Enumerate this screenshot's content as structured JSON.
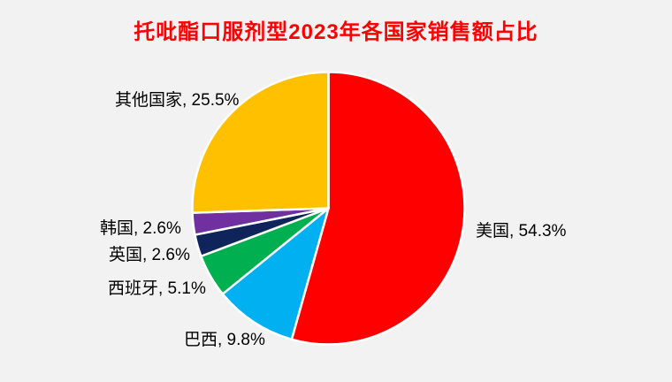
{
  "page": {
    "background_color": "#F2F2F2"
  },
  "chart_data": {
    "type": "pie",
    "title": "托吡酯口服剂型2023年各国家销售额占比",
    "title_color": "#FF0000",
    "unit": "%",
    "direction": "clockwise",
    "start_angle_deg": 0,
    "legend_position": "none",
    "labels_outside": true,
    "label_color": "#000000",
    "stroke_color": "#FFFFFF",
    "slices": [
      {
        "id": "usa",
        "name": "美国",
        "value": 54.3,
        "color": "#FF0000",
        "label": "美国, 54.3%"
      },
      {
        "id": "brazil",
        "name": "巴西",
        "value": 9.8,
        "color": "#00B0F0",
        "label": "巴西, 9.8%"
      },
      {
        "id": "spain",
        "name": "西班牙",
        "value": 5.1,
        "color": "#00B050",
        "label": "西班牙, 5.1%"
      },
      {
        "id": "uk",
        "name": "英国",
        "value": 2.6,
        "color": "#10245C",
        "label": "英国, 2.6%"
      },
      {
        "id": "korea",
        "name": "韩国",
        "value": 2.6,
        "color": "#7030A0",
        "label": "韩国, 2.6%"
      },
      {
        "id": "others",
        "name": "其他国家",
        "value": 25.5,
        "color": "#FFC000",
        "label": "其他国家, 25.5%"
      }
    ]
  }
}
